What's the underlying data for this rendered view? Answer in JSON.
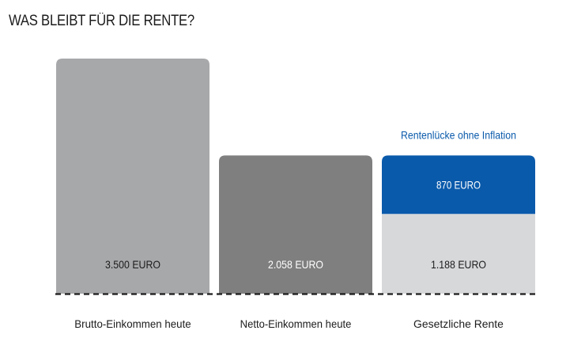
{
  "title": "WAS BLEIBT FÜR DIE RENTE?",
  "chart_data": {
    "type": "bar",
    "title": "WAS BLEIBT FÜR DIE RENTE?",
    "xlabel": "",
    "ylabel": "",
    "grid": false,
    "ylim": [
      0,
      3500
    ],
    "categories": [
      "Brutto-Einkommen heute",
      "Netto-Einkommen heute",
      "Gesetzliche Rente"
    ],
    "bars": [
      {
        "category": "Brutto-Einkommen heute",
        "segments": [
          {
            "value": 3500,
            "label": "3.500 EURO",
            "color": "#a7a8aa",
            "text_color": "#1c1c1c"
          }
        ]
      },
      {
        "category": "Netto-Einkommen heute",
        "segments": [
          {
            "value": 2058,
            "label": "2.058 EURO",
            "color": "#7f7f80",
            "text_color": "#ffffff"
          }
        ]
      },
      {
        "category": "Gesetzliche Rente",
        "segments": [
          {
            "value": 1188,
            "label": "1.188 EURO",
            "color": "#d7d8da",
            "text_color": "#1c1c1c"
          },
          {
            "value": 870,
            "label": "870 EURO",
            "color": "#0a5aab",
            "text_color": "#ffffff"
          }
        ]
      }
    ],
    "annotations": [
      {
        "text": "Rentenlücke ohne Inflation",
        "bar": 2,
        "color": "#0a5aab"
      }
    ]
  }
}
